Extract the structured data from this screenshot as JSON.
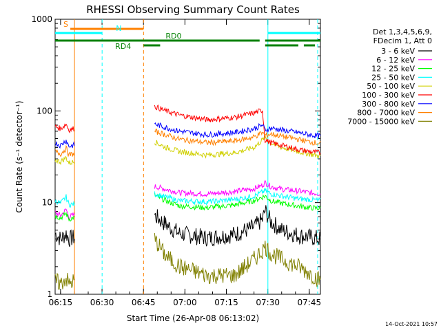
{
  "chart_data": {
    "type": "line",
    "title": "RHESSI Observing Summary Count Rates",
    "xlabel": "Start Time (26-Apr-08 06:13:02)",
    "ylabel": "Count Rate (s⁻¹ detector⁻¹)",
    "yscale": "log",
    "ylim": [
      1,
      1000
    ],
    "xlim_minutes": [
      0,
      96
    ],
    "x_tick_labels": [
      "06:15",
      "06:30",
      "06:45",
      "07:00",
      "07:15",
      "07:30",
      "07:45"
    ],
    "x_tick_minutes": [
      1.97,
      16.97,
      31.97,
      46.97,
      61.97,
      76.97,
      91.97
    ],
    "y_tick_labels": [
      "1",
      "10",
      "100",
      "1000"
    ],
    "y_tick_values": [
      1,
      10,
      100,
      1000
    ],
    "legend_title": [
      "Det 1,3,4,5,6,9,",
      "FDecim 1, Att 0"
    ],
    "timestamp": "14-Oct-2021 10:57",
    "data_gap_minutes": [
      7,
      36
    ],
    "series": [
      {
        "name": "3 - 6 keV",
        "color": "#000000",
        "points": [
          [
            0,
            4.6
          ],
          [
            2,
            4.0
          ],
          [
            4,
            4.6
          ],
          [
            5,
            4.0
          ],
          [
            36,
            7.2
          ],
          [
            40,
            5.8
          ],
          [
            45,
            4.6
          ],
          [
            55,
            4.1
          ],
          [
            65,
            4.5
          ],
          [
            72,
            5.4
          ],
          [
            75,
            6.5
          ],
          [
            76,
            8.2
          ],
          [
            78,
            6.2
          ],
          [
            82,
            5.0
          ],
          [
            88,
            4.4
          ],
          [
            92,
            4.2
          ],
          [
            96,
            4.0
          ]
        ]
      },
      {
        "name": "6 - 12 keV",
        "color": "#ff00ff",
        "points": [
          [
            0,
            7.8
          ],
          [
            2,
            7.2
          ],
          [
            4,
            8.4
          ],
          [
            5,
            7.0
          ],
          [
            36,
            15.0
          ],
          [
            40,
            14.0
          ],
          [
            45,
            12.8
          ],
          [
            55,
            12.4
          ],
          [
            65,
            13.2
          ],
          [
            72,
            14.2
          ],
          [
            75,
            15.5
          ],
          [
            76,
            16.5
          ],
          [
            78,
            15.0
          ],
          [
            82,
            14.0
          ],
          [
            88,
            13.4
          ],
          [
            92,
            12.8
          ],
          [
            96,
            12.5
          ]
        ]
      },
      {
        "name": "12 - 25 keV",
        "color": "#00ff00",
        "points": [
          [
            0,
            7.2
          ],
          [
            2,
            6.8
          ],
          [
            4,
            7.6
          ],
          [
            5,
            6.6
          ],
          [
            36,
            12.0
          ],
          [
            40,
            10.5
          ],
          [
            45,
            9.2
          ],
          [
            55,
            8.8
          ],
          [
            65,
            9.4
          ],
          [
            72,
            10.5
          ],
          [
            75,
            11.5
          ],
          [
            76,
            11.8
          ],
          [
            78,
            10.5
          ],
          [
            82,
            9.8
          ],
          [
            88,
            9.2
          ],
          [
            92,
            8.8
          ],
          [
            96,
            8.6
          ]
        ]
      },
      {
        "name": "25 - 50 keV",
        "color": "#00ffff",
        "points": [
          [
            0,
            10.5
          ],
          [
            2,
            9.8
          ],
          [
            4,
            11.5
          ],
          [
            5,
            9.5
          ],
          [
            36,
            12.5
          ],
          [
            40,
            11.5
          ],
          [
            45,
            10.5
          ],
          [
            55,
            10.2
          ],
          [
            65,
            10.8
          ],
          [
            72,
            11.8
          ],
          [
            75,
            13.0
          ],
          [
            76,
            13.5
          ],
          [
            78,
            12.5
          ],
          [
            82,
            11.8
          ],
          [
            88,
            11.0
          ],
          [
            92,
            10.8
          ],
          [
            96,
            10.5
          ]
        ]
      },
      {
        "name": "50 - 100 keV",
        "color": "#d0d000",
        "points": [
          [
            0,
            29
          ],
          [
            2,
            28
          ],
          [
            4,
            31
          ],
          [
            5,
            27
          ],
          [
            36,
            46
          ],
          [
            40,
            40
          ],
          [
            45,
            36
          ],
          [
            55,
            33
          ],
          [
            65,
            35
          ],
          [
            72,
            40
          ],
          [
            75,
            48
          ],
          [
            76,
            52
          ],
          [
            78,
            45
          ],
          [
            82,
            40
          ],
          [
            88,
            36
          ],
          [
            92,
            34
          ],
          [
            96,
            32
          ]
        ]
      },
      {
        "name": "100 - 300 keV",
        "color": "#ff0000",
        "points": [
          [
            0,
            68
          ],
          [
            2,
            64
          ],
          [
            4,
            72
          ],
          [
            5,
            62
          ],
          [
            36,
            112
          ],
          [
            40,
            100
          ],
          [
            45,
            90
          ],
          [
            55,
            80
          ],
          [
            65,
            85
          ],
          [
            72,
            95
          ],
          [
            75,
            102
          ],
          [
            76,
            48
          ],
          [
            78,
            45
          ],
          [
            82,
            42
          ],
          [
            88,
            38
          ],
          [
            92,
            36
          ],
          [
            96,
            35
          ]
        ]
      },
      {
        "name": "300 - 800 keV",
        "color": "#0000ff",
        "points": [
          [
            0,
            45
          ],
          [
            2,
            42
          ],
          [
            4,
            48
          ],
          [
            5,
            41
          ],
          [
            36,
            72
          ],
          [
            40,
            66
          ],
          [
            45,
            60
          ],
          [
            55,
            55
          ],
          [
            65,
            58
          ],
          [
            72,
            64
          ],
          [
            75,
            70
          ],
          [
            76,
            62
          ],
          [
            78,
            65
          ],
          [
            82,
            62
          ],
          [
            88,
            58
          ],
          [
            92,
            55
          ],
          [
            96,
            53
          ]
        ]
      },
      {
        "name": "800 - 7000 keV",
        "color": "#ff8000",
        "points": [
          [
            0,
            36
          ],
          [
            2,
            34
          ],
          [
            4,
            39
          ],
          [
            5,
            33
          ],
          [
            36,
            60
          ],
          [
            40,
            55
          ],
          [
            45,
            49
          ],
          [
            55,
            45
          ],
          [
            65,
            47
          ],
          [
            72,
            52
          ],
          [
            75,
            58
          ],
          [
            76,
            54
          ],
          [
            78,
            56
          ],
          [
            82,
            53
          ],
          [
            88,
            49
          ],
          [
            92,
            46
          ],
          [
            96,
            44
          ]
        ]
      },
      {
        "name": "7000 - 15000 keV",
        "color": "#808000",
        "points": [
          [
            0,
            1.4
          ],
          [
            2,
            1.3
          ],
          [
            4,
            1.5
          ],
          [
            5,
            1.3
          ],
          [
            36,
            4.0
          ],
          [
            40,
            2.6
          ],
          [
            45,
            2.0
          ],
          [
            55,
            1.6
          ],
          [
            65,
            1.6
          ],
          [
            72,
            2.4
          ],
          [
            75,
            3.0
          ],
          [
            76,
            3.3
          ],
          [
            78,
            2.8
          ],
          [
            82,
            2.4
          ],
          [
            88,
            2.0
          ],
          [
            92,
            1.7
          ],
          [
            96,
            1.4
          ]
        ]
      }
    ],
    "flags": [
      {
        "label": "S",
        "color": "#ff8000",
        "segments": [
          [
            5.5,
            32
          ]
        ]
      },
      {
        "label": "N",
        "color": "#00ffff",
        "segments": [
          [
            0,
            17
          ],
          [
            77,
            96
          ]
        ]
      },
      {
        "label": "RD0",
        "color": "#008000",
        "segments": [
          [
            0,
            74
          ],
          [
            76,
            96
          ]
        ]
      },
      {
        "label": "RD4",
        "color": "#008000",
        "segments": [
          [
            32,
            38
          ],
          [
            76,
            88
          ],
          [
            90,
            94
          ]
        ]
      }
    ],
    "vertical_markers": [
      {
        "minute": 7,
        "color": "#ff8000",
        "style": "solid"
      },
      {
        "minute": 17,
        "color": "#00ffff",
        "style": "dashed"
      },
      {
        "minute": 32,
        "color": "#ff8000",
        "style": "dashed"
      },
      {
        "minute": 77,
        "color": "#00ffff",
        "style": "solid"
      },
      {
        "minute": 95,
        "color": "#00ffff",
        "style": "dashed"
      }
    ]
  }
}
